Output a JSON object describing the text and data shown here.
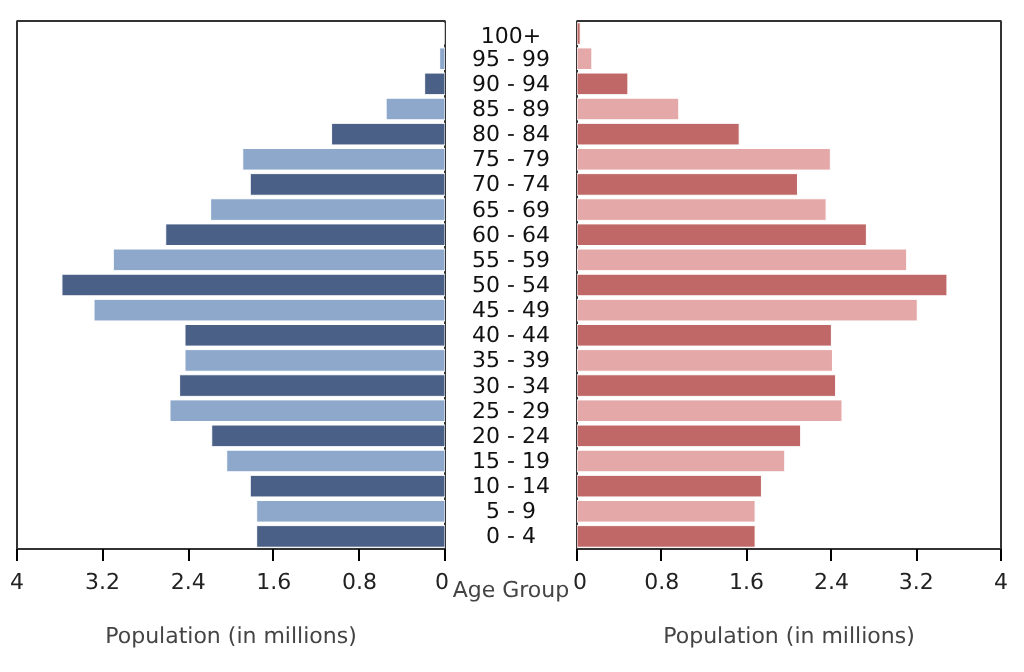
{
  "chart_data": [
    {
      "type": "bar",
      "orientation": "horizontal",
      "categories": [
        "100+",
        "95 - 99",
        "90 - 94",
        "85 - 89",
        "80 - 84",
        "75 - 79",
        "70 - 74",
        "65 - 69",
        "60 - 64",
        "55 - 59",
        "50 - 54",
        "45 - 49",
        "40 - 44",
        "35 - 39",
        "30 - 34",
        "25 - 29",
        "20 - 24",
        "15 - 19",
        "10 - 14",
        "5 - 9",
        "0 - 4"
      ],
      "values": [
        null,
        0.05,
        0.19,
        0.55,
        1.06,
        1.89,
        1.82,
        2.19,
        2.61,
        3.1,
        3.58,
        3.28,
        2.43,
        2.43,
        2.48,
        2.57,
        2.18,
        2.04,
        1.82,
        1.76,
        1.76
      ],
      "colors": [
        "#4a6086",
        "#8ea8cc",
        "#4a6086",
        "#8ea8cc",
        "#4a6086",
        "#8ea8cc",
        "#4a6086",
        "#8ea8cc",
        "#4a6086",
        "#8ea8cc",
        "#4a6086",
        "#8ea8cc",
        "#4a6086",
        "#8ea8cc",
        "#4a6086",
        "#8ea8cc",
        "#4a6086",
        "#8ea8cc",
        "#4a6086",
        "#8ea8cc",
        "#4a6086"
      ],
      "xlim": [
        4,
        0
      ],
      "xticks": [
        4,
        3.2,
        2.4,
        1.6,
        0.8,
        0
      ],
      "xlabel": "Population (in millions)",
      "ylabel": "Age Group"
    },
    {
      "type": "bar",
      "orientation": "horizontal",
      "categories": [
        null,
        null,
        null,
        null,
        null,
        null,
        null,
        null,
        null,
        null,
        null,
        null,
        null,
        null,
        null,
        null,
        null,
        null,
        null,
        null,
        null
      ],
      "values": [
        0.03,
        0.14,
        0.48,
        0.96,
        1.53,
        2.39,
        2.08,
        2.35,
        2.73,
        3.11,
        3.49,
        3.21,
        2.4,
        2.41,
        2.44,
        2.5,
        2.11,
        1.96,
        1.74,
        1.68,
        1.68
      ],
      "colors": [
        "#c06868",
        "#e4a8a8",
        "#c06868",
        "#e4a8a8",
        "#c06868",
        "#e4a8a8",
        "#c06868",
        "#e4a8a8",
        "#c06868",
        "#e4a8a8",
        "#c06868",
        "#e4a8a8",
        "#c06868",
        "#e4a8a8",
        "#c06868",
        "#e4a8a8",
        "#c06868",
        "#e4a8a8",
        "#c06868",
        "#e4a8a8",
        "#c06868"
      ],
      "xlim": [
        0,
        4
      ],
      "xticks": [
        0,
        0.8,
        1.6,
        2.4,
        3.2,
        4
      ],
      "xlabel": "Population (in millions)",
      "tick_labels": "x"
    }
  ]
}
